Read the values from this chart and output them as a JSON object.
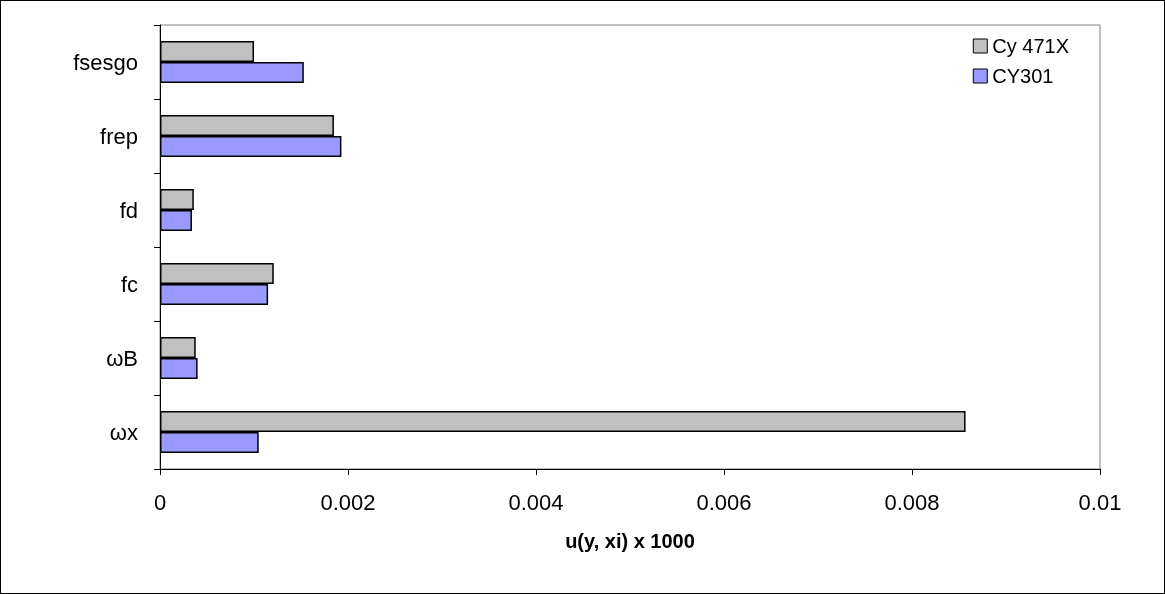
{
  "chart_data": {
    "type": "bar",
    "orientation": "horizontal",
    "xlabel": "u(y, xi) x 1000",
    "categories": [
      "fsesgo",
      "frep",
      "fd",
      "fc",
      "ωB",
      "ωx"
    ],
    "series": [
      {
        "name": "Cy 471X",
        "color": "#c0c0c0",
        "values": [
          0.001,
          0.00185,
          0.00036,
          0.00121,
          0.00038,
          0.00857
        ]
      },
      {
        "name": "CY301",
        "color": "#9999ff",
        "values": [
          0.00153,
          0.00193,
          0.00034,
          0.00115,
          0.0004,
          0.00105
        ]
      }
    ],
    "xlim": [
      0,
      0.01
    ],
    "xticks": [
      0,
      0.002,
      0.004,
      0.006,
      0.008,
      0.01
    ],
    "grid": false,
    "legend": "top right"
  }
}
